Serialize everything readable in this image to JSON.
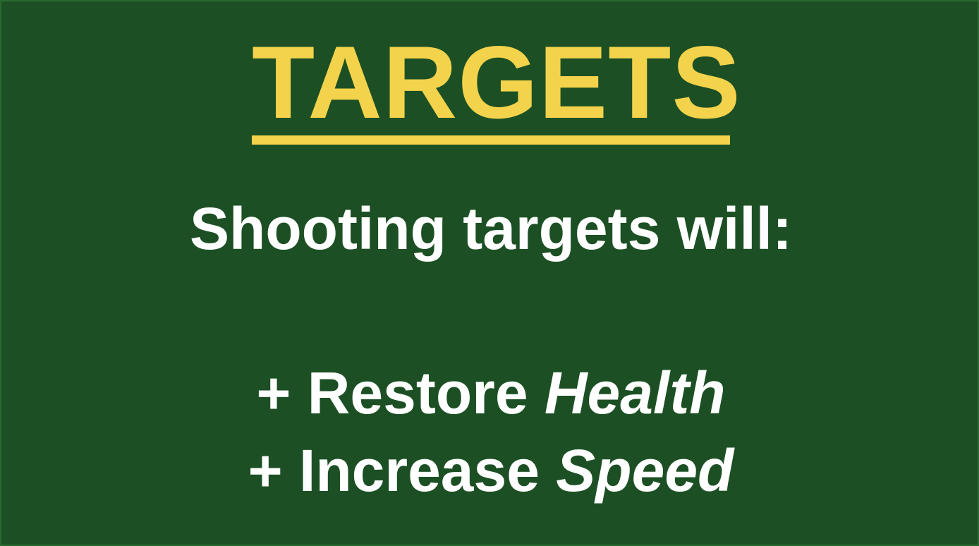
{
  "title": "TARGETS",
  "subtitle": "Shooting targets will:",
  "bonuses": [
    {
      "prefix": "+ Restore ",
      "emphasis": "Health"
    },
    {
      "prefix": "+ Increase ",
      "emphasis": "Speed"
    }
  ],
  "colors": {
    "background": "#1c5024",
    "title": "#f4d34c",
    "text": "#ffffff"
  }
}
